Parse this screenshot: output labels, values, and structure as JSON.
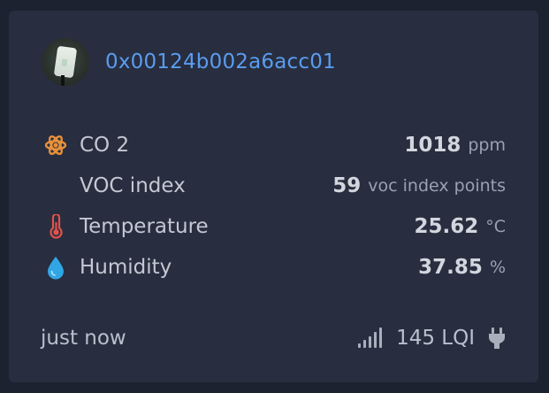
{
  "device": {
    "id": "0x00124b002a6acc01",
    "avatar_icon": "sensor-device-photo"
  },
  "readings": [
    {
      "icon": "atom-icon",
      "icon_color": "#e8913a",
      "label": "CO 2",
      "value": "1018",
      "unit": "ppm"
    },
    {
      "icon": "",
      "icon_color": "",
      "label": "VOC index",
      "value": "59",
      "unit": "voc index points"
    },
    {
      "icon": "thermometer-icon",
      "icon_color": "#e0524c",
      "label": "Temperature",
      "value": "25.62",
      "unit": "°C"
    },
    {
      "icon": "water-drop-icon",
      "icon_color": "#31a6e5",
      "label": "Humidity",
      "value": "37.85",
      "unit": "%"
    }
  ],
  "footer": {
    "last_seen": "just now",
    "lqi": "145 LQI",
    "signal_icon": "signal-bars-icon",
    "power_icon": "plug-icon"
  }
}
